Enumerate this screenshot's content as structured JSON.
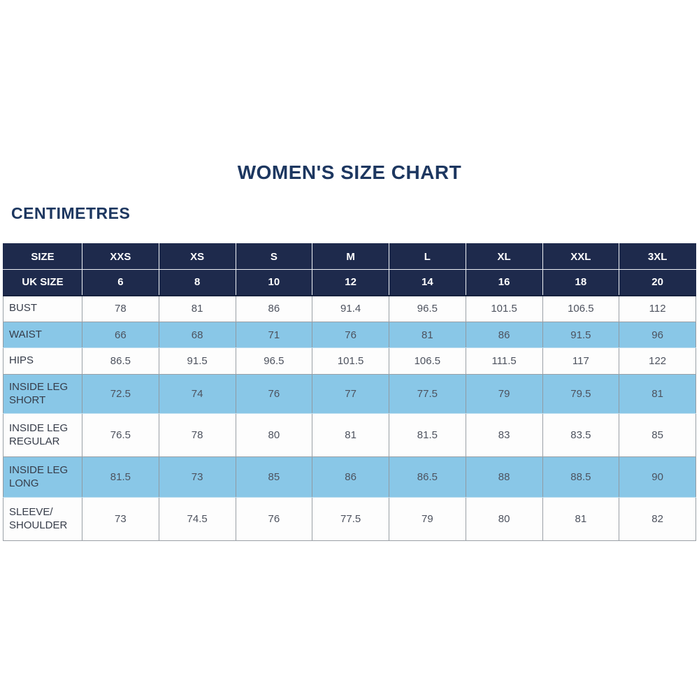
{
  "page": {
    "title": "WOMEN'S SIZE CHART",
    "unit_label": "CENTIMETRES"
  },
  "colors": {
    "header_navy": "#1e2a4c",
    "title_navy": "#1d3760",
    "row_light_blue": "#89c7e7",
    "row_white": "#fdfdfd",
    "grid_gray": "#9aa0a6",
    "body_text": "#4d525e"
  },
  "chart_data": {
    "type": "table",
    "title": "WOMEN'S SIZE CHART",
    "unit_label": "CENTIMETRES",
    "header_rows": [
      {
        "label": "SIZE",
        "values": [
          "XXS",
          "XS",
          "S",
          "M",
          "L",
          "XL",
          "XXL",
          "3XL"
        ]
      },
      {
        "label": "UK SIZE",
        "values": [
          "6",
          "8",
          "10",
          "12",
          "14",
          "16",
          "18",
          "20"
        ]
      }
    ],
    "rows": [
      {
        "label": "BUST",
        "values": [
          "78",
          "81",
          "86",
          "91.4",
          "96.5",
          "101.5",
          "106.5",
          "112"
        ]
      },
      {
        "label": "WAIST",
        "values": [
          "66",
          "68",
          "71",
          "76",
          "81",
          "86",
          "91.5",
          "96"
        ]
      },
      {
        "label": "HIPS",
        "values": [
          "86.5",
          "91.5",
          "96.5",
          "101.5",
          "106.5",
          "111.5",
          "117",
          "122"
        ]
      },
      {
        "label": "INSIDE LEG SHORT",
        "values": [
          "72.5",
          "74",
          "76",
          "77",
          "77.5",
          "79",
          "79.5",
          "81"
        ]
      },
      {
        "label": "INSIDE LEG REGULAR",
        "values": [
          "76.5",
          "78",
          "80",
          "81",
          "81.5",
          "83",
          "83.5",
          "85"
        ]
      },
      {
        "label": "INSIDE LEG LONG",
        "values": [
          "81.5",
          "73",
          "85",
          "86",
          "86.5",
          "88",
          "88.5",
          "90"
        ]
      },
      {
        "label": "SLEEVE/ SHOULDER",
        "values": [
          "73",
          "74.5",
          "76",
          "77.5",
          "79",
          "80",
          "81",
          "82"
        ]
      }
    ]
  }
}
